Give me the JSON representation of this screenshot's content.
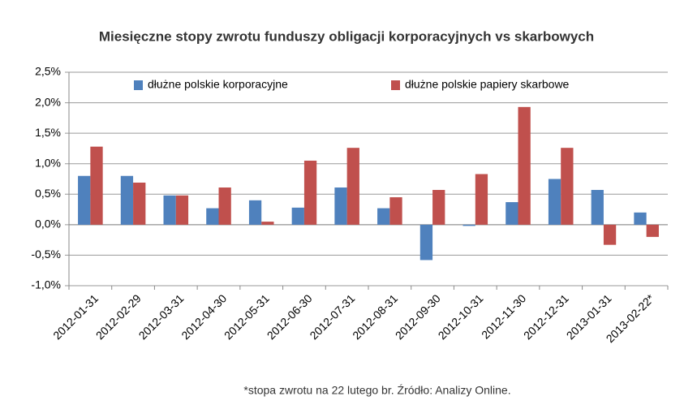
{
  "chart_data": {
    "type": "bar",
    "title": "Miesięczne stopy zwrotu funduszy obligacji korporacyjnych vs skarbowych",
    "categories": [
      "2012-01-31",
      "2012-02-29",
      "2012-03-31",
      "2012-04-30",
      "2012-05-31",
      "2012-06-30",
      "2012-07-31",
      "2012-08-31",
      "2012-09-30",
      "2012-10-31",
      "2012-11-30",
      "2012-12-31",
      "2013-01-31",
      "2013-02-22*"
    ],
    "series": [
      {
        "name": "dłużne polskie korporacyjne",
        "color": "#4f81bd",
        "values": [
          0.8,
          0.8,
          0.48,
          0.27,
          0.4,
          0.28,
          0.61,
          0.27,
          -0.58,
          -0.02,
          0.37,
          0.75,
          0.57,
          0.2
        ]
      },
      {
        "name": "dłużne polskie papiery skarbowe",
        "color": "#c0504d",
        "values": [
          1.28,
          0.69,
          0.48,
          0.61,
          0.05,
          1.05,
          1.26,
          0.45,
          0.57,
          0.83,
          1.93,
          1.26,
          -0.33,
          -0.2
        ]
      }
    ],
    "ylim": [
      -1.0,
      2.5
    ],
    "yticks": [
      {
        "value": -1.0,
        "label": "-1,0%"
      },
      {
        "value": -0.5,
        "label": "-0,5%"
      },
      {
        "value": 0,
        "label": "0,0%"
      },
      {
        "value": 0.5,
        "label": "0,5%"
      },
      {
        "value": 1.0,
        "label": "1,0%"
      },
      {
        "value": 1.5,
        "label": "1,5%"
      },
      {
        "value": 2.0,
        "label": "2,0%"
      },
      {
        "value": 2.5,
        "label": "2,5%"
      }
    ],
    "grid": true,
    "legend": "top",
    "note": "*stopa zwrotu na 22 lutego br. Źródło: Analizy Online."
  }
}
